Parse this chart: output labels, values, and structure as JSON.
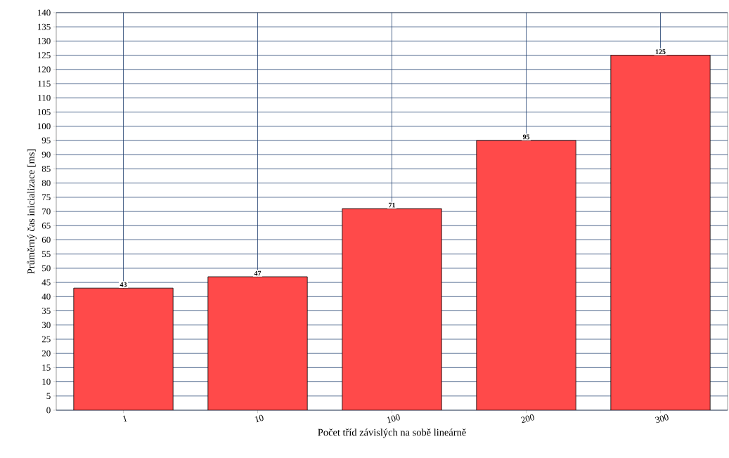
{
  "chart_data": {
    "type": "bar",
    "xlabel": "Počet tříd závislých na sobě lineárně",
    "ylabel": "Průměrný čas inicializace [ms]",
    "categories": [
      "1",
      "10",
      "100",
      "200",
      "300"
    ],
    "values": [
      43,
      47,
      71,
      95,
      125
    ],
    "color": "#ff4a4a",
    "ylim": [
      0,
      140
    ],
    "yticks": [
      0,
      5,
      10,
      15,
      20,
      25,
      30,
      35,
      40,
      45,
      50,
      55,
      60,
      65,
      70,
      75,
      80,
      85,
      90,
      95,
      100,
      105,
      110,
      115,
      120,
      125,
      130,
      135,
      140
    ],
    "grid": true,
    "data_labels": true
  }
}
